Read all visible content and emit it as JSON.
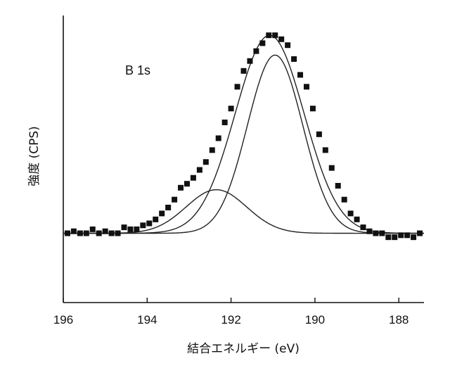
{
  "chart_data": {
    "type": "scatter",
    "title": "",
    "annotation": "B 1s",
    "xlabel": "結合エネルギー (eV)",
    "ylabel": "強度 (CPS)",
    "xlim": [
      196,
      187.4
    ],
    "ylim": [
      -0.35,
      1.1
    ],
    "x_reversed": true,
    "grid": false,
    "legend": "none",
    "xticks": [
      {
        "value": 196,
        "label": "196"
      },
      {
        "value": 194,
        "label": "194"
      },
      {
        "value": 192,
        "label": "192"
      },
      {
        "value": 190,
        "label": "190"
      },
      {
        "value": 188,
        "label": "188"
      }
    ],
    "series": [
      {
        "name": "measured",
        "kind": "points",
        "x": [
          195.9,
          195.75,
          195.6,
          195.45,
          195.3,
          195.15,
          195.0,
          194.85,
          194.7,
          194.55,
          194.4,
          194.25,
          194.1,
          193.95,
          193.8,
          193.65,
          193.5,
          193.35,
          193.2,
          193.05,
          192.9,
          192.75,
          192.6,
          192.45,
          192.3,
          192.15,
          192.0,
          191.85,
          191.7,
          191.55,
          191.4,
          191.25,
          191.1,
          190.95,
          190.8,
          190.65,
          190.5,
          190.35,
          190.2,
          190.05,
          189.9,
          189.75,
          189.6,
          189.45,
          189.3,
          189.15,
          189.0,
          188.85,
          188.7,
          188.55,
          188.4,
          188.25,
          188.1,
          187.95,
          187.8,
          187.65,
          187.5
        ],
        "y": [
          0.0,
          0.01,
          0.0,
          0.0,
          0.02,
          0.0,
          0.01,
          0.0,
          0.0,
          0.03,
          0.02,
          0.02,
          0.04,
          0.05,
          0.07,
          0.1,
          0.13,
          0.17,
          0.23,
          0.25,
          0.28,
          0.32,
          0.36,
          0.42,
          0.48,
          0.56,
          0.63,
          0.74,
          0.82,
          0.87,
          0.92,
          0.96,
          1.0,
          1.0,
          0.98,
          0.95,
          0.88,
          0.8,
          0.74,
          0.63,
          0.5,
          0.42,
          0.33,
          0.24,
          0.17,
          0.1,
          0.07,
          0.03,
          0.01,
          0.0,
          0.0,
          -0.02,
          -0.02,
          -0.01,
          -0.01,
          -0.02,
          0.0
        ]
      },
      {
        "name": "envelope",
        "kind": "line",
        "center": 191.08,
        "amplitude": 1.0,
        "sigma": 0.82
      },
      {
        "name": "main-component",
        "kind": "line",
        "center": 190.95,
        "amplitude": 0.9,
        "sigma": 0.66
      },
      {
        "name": "minor-component",
        "kind": "line",
        "center": 192.35,
        "amplitude": 0.22,
        "sigma": 0.72
      }
    ]
  }
}
